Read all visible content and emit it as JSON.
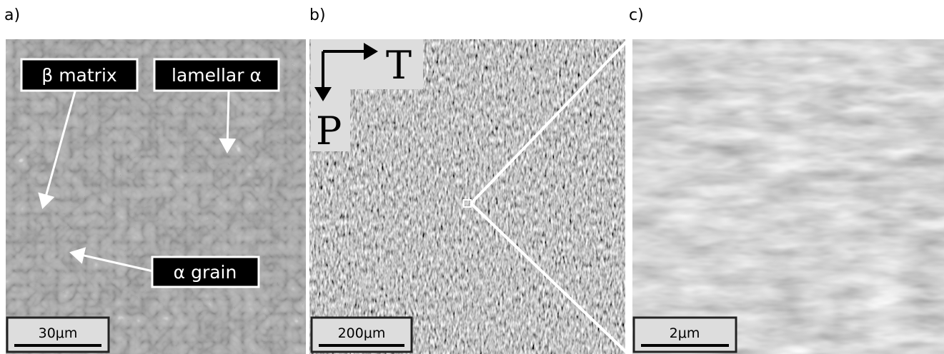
{
  "panels": [
    {
      "label": "a)",
      "scale_bar": "30μm",
      "annotations": [
        "β matrix",
        "lamellar α",
        "α grain"
      ]
    },
    {
      "label": "b)",
      "scale_bar": "200μm",
      "axes": [
        "T",
        "P"
      ]
    },
    {
      "label": "c)",
      "scale_bar": "2μm"
    }
  ]
}
